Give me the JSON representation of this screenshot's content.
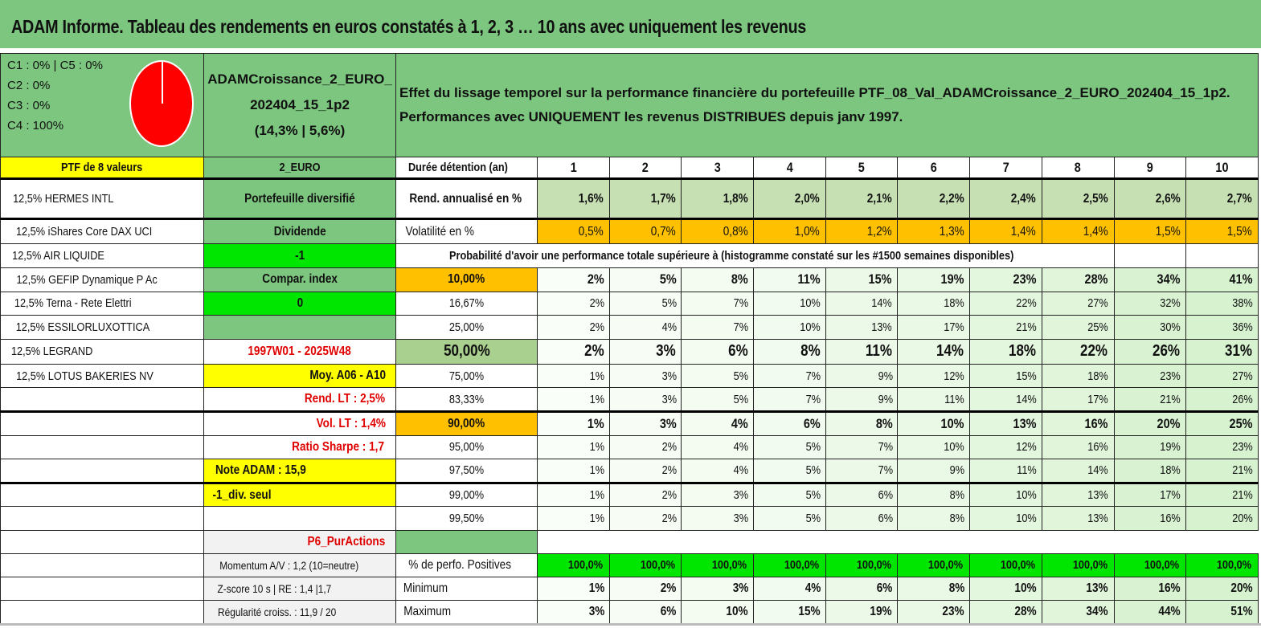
{
  "title": "ADAM Informe. Tableau des rendements en euros constatés à 1, 2, 3 … 10 ans avec uniquement les revenus",
  "legend": [
    "C1 : 0% | C5 : 0%",
    "C2 : 0%",
    "C3 : 0%",
    "C4 : 100%"
  ],
  "pie": {
    "slices": [
      {
        "label": "C4",
        "value": 100,
        "color": "#FF0000"
      }
    ]
  },
  "portfolio": {
    "line1": "ADAMCroissance_2_EURO_",
    "line2": "202404_15_1p2",
    "line3": "(14,3% | 5,6%)"
  },
  "description": {
    "line1": "Effet du lissage temporel sur la performance financière du portefeuille PTF_08_Val_ADAMCroissance_2_EURO_202404_15_1p2.",
    "line2": "Performances avec UNIQUEMENT les revenus DISTRIBUES depuis janv 1997."
  },
  "header": {
    "ptf": "PTF de 8 valeurs",
    "currency": "2_EURO",
    "duration_label": "Durée détention (an)",
    "years": [
      "1",
      "2",
      "3",
      "4",
      "5",
      "6",
      "7",
      "8",
      "9",
      "10"
    ]
  },
  "holdings": [
    "12,5% HERMES INTL",
    "12,5% iShares Core DAX UCI",
    "12,5% AIR LIQUIDE",
    "12,5% GEFIP Dynamique P Ac",
    "12,5% Terna - Rete Elettri",
    "12,5% ESSILORLUXOTTICA",
    "12,5% LEGRAND",
    "12,5% LOTUS BAKERIES NV"
  ],
  "info": {
    "type": "Portefeuille diversifié",
    "dividend_label": "Dividende",
    "dividend_value": "-1",
    "compar_label": "Compar. index",
    "compar_value": "0",
    "period": "1997W01 - 2025W48",
    "moy": "Moy. A06 - A10",
    "rend_lt": "Rend. LT : 2,5%",
    "vol_lt": "Vol. LT : 1,4%",
    "sharpe": "Ratio Sharpe : 1,7",
    "note": "Note ADAM : 15,9",
    "div_seul": "-1_div. seul",
    "p6": "P6_PurActions",
    "momentum": "Momentum A/V : 1,2 (10=neutre)",
    "zscore": "Z-score 10 s | RE : 1,4 |1,7",
    "regularite": "Régularité croiss. : 11,9 / 20"
  },
  "rend": {
    "label": "Rend. annualisé en %",
    "values": [
      "1,6%",
      "1,7%",
      "1,8%",
      "2,0%",
      "2,1%",
      "2,2%",
      "2,4%",
      "2,5%",
      "2,6%",
      "2,7%"
    ]
  },
  "vol": {
    "label": "Volatilité en %",
    "values": [
      "0,5%",
      "0,7%",
      "0,8%",
      "1,0%",
      "1,2%",
      "1,3%",
      "1,4%",
      "1,4%",
      "1,5%",
      "1,5%"
    ]
  },
  "prob_title": "Probabilité d'avoir une performance totale supérieure à (histogramme constaté sur les #1500 semaines disponibles)",
  "prob": [
    {
      "threshold": "10,00%",
      "values": [
        "2%",
        "5%",
        "8%",
        "11%",
        "15%",
        "19%",
        "23%",
        "28%",
        "34%",
        "41%"
      ]
    },
    {
      "threshold": "16,67%",
      "values": [
        "2%",
        "5%",
        "7%",
        "10%",
        "14%",
        "18%",
        "22%",
        "27%",
        "32%",
        "38%"
      ]
    },
    {
      "threshold": "25,00%",
      "values": [
        "2%",
        "4%",
        "7%",
        "10%",
        "13%",
        "17%",
        "21%",
        "25%",
        "30%",
        "36%"
      ]
    },
    {
      "threshold": "50,00%",
      "values": [
        "2%",
        "3%",
        "6%",
        "8%",
        "11%",
        "14%",
        "18%",
        "22%",
        "26%",
        "31%"
      ]
    },
    {
      "threshold": "75,00%",
      "values": [
        "1%",
        "3%",
        "5%",
        "7%",
        "9%",
        "12%",
        "15%",
        "18%",
        "23%",
        "27%"
      ]
    },
    {
      "threshold": "83,33%",
      "values": [
        "1%",
        "3%",
        "5%",
        "7%",
        "9%",
        "11%",
        "14%",
        "17%",
        "21%",
        "26%"
      ]
    },
    {
      "threshold": "90,00%",
      "values": [
        "1%",
        "3%",
        "4%",
        "6%",
        "8%",
        "10%",
        "13%",
        "16%",
        "20%",
        "25%"
      ]
    },
    {
      "threshold": "95,00%",
      "values": [
        "1%",
        "2%",
        "4%",
        "5%",
        "7%",
        "10%",
        "12%",
        "16%",
        "19%",
        "23%"
      ]
    },
    {
      "threshold": "97,50%",
      "values": [
        "1%",
        "2%",
        "4%",
        "5%",
        "7%",
        "9%",
        "11%",
        "14%",
        "18%",
        "21%"
      ]
    },
    {
      "threshold": "99,00%",
      "values": [
        "1%",
        "2%",
        "3%",
        "5%",
        "6%",
        "8%",
        "10%",
        "13%",
        "17%",
        "21%"
      ]
    },
    {
      "threshold": "99,50%",
      "values": [
        "1%",
        "2%",
        "3%",
        "5%",
        "6%",
        "8%",
        "10%",
        "13%",
        "16%",
        "20%"
      ]
    }
  ],
  "positives": {
    "label": "% de perfo. Positives",
    "values": [
      "100,0%",
      "100,0%",
      "100,0%",
      "100,0%",
      "100,0%",
      "100,0%",
      "100,0%",
      "100,0%",
      "100,0%",
      "100,0%"
    ]
  },
  "minimum": {
    "label": "Minimum",
    "values": [
      "1%",
      "2%",
      "3%",
      "4%",
      "6%",
      "8%",
      "10%",
      "13%",
      "16%",
      "20%"
    ]
  },
  "maximum": {
    "label": "Maximum",
    "values": [
      "3%",
      "6%",
      "10%",
      "15%",
      "19%",
      "23%",
      "28%",
      "34%",
      "44%",
      "51%"
    ]
  },
  "colors": {
    "title_green": "#7DC67F",
    "yellow": "#FFFF00",
    "orange": "#FFC000",
    "bright_green": "#00E600",
    "pie_red": "#FF0000"
  }
}
